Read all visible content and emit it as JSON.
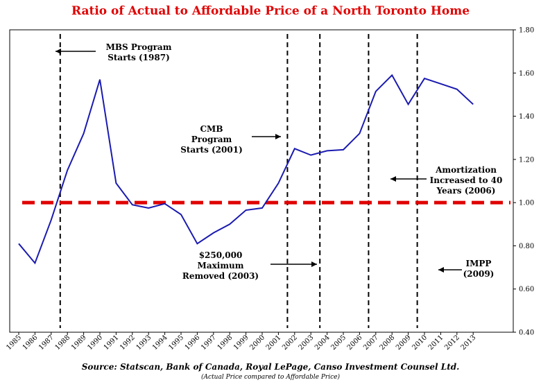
{
  "chart_data": {
    "type": "line",
    "title": "Ratio of Actual to Affordable Price of a North Toronto Home",
    "x": [
      "1985",
      "1986",
      "1987",
      "1988",
      "1989",
      "1990",
      "1991",
      "1992",
      "1993",
      "1994",
      "1995",
      "1996",
      "1997",
      "1998",
      "1999",
      "2000",
      "2001",
      "2002",
      "2003",
      "2004",
      "2005",
      "2006",
      "2007",
      "2008",
      "2009",
      "2010",
      "2011",
      "2012",
      "2013"
    ],
    "series": [
      {
        "values": [
          0.81,
          0.72,
          0.92,
          1.15,
          1.32,
          1.57,
          1.09,
          0.99,
          0.975,
          0.995,
          0.945,
          0.81,
          0.86,
          0.9,
          0.965,
          0.975,
          1.09,
          1.25,
          1.22,
          1.24,
          1.245,
          1.32,
          1.515,
          1.59,
          1.455,
          1.575,
          1.55,
          1.525,
          1.455
        ],
        "color": "#1a1ab0"
      }
    ],
    "reference_line": {
      "value": 1.0,
      "color": "#e00000",
      "style": "dashed"
    },
    "ylim": [
      0.4,
      1.8
    ],
    "yticks": [
      "0.40",
      "0.60",
      "0.80",
      "1.00",
      "1.20",
      "1.40",
      "1.60",
      "1.80"
    ],
    "y_axis_side": "right",
    "grid": false,
    "event_lines": [
      "1987",
      "2001",
      "2003",
      "2006",
      "2009"
    ],
    "annotations": [
      {
        "lines": [
          "MBS Program",
          "Starts (1987)"
        ],
        "arrow": "left"
      },
      {
        "lines": [
          "CMB",
          "Program",
          "Starts (2001)"
        ],
        "arrow": "right"
      },
      {
        "lines": [
          "$250,000",
          "Maximum",
          "Removed (2003)"
        ],
        "arrow": "right"
      },
      {
        "lines": [
          "Amortization",
          "Increased to 40",
          "Years (2006)"
        ],
        "arrow": "left"
      },
      {
        "lines": [
          "IMPP",
          "(2009)"
        ],
        "arrow": "left"
      }
    ],
    "source": "Source: Statscan,  Bank of Canada, Royal LePage, Canso Investment Counsel Ltd.",
    "note": "(Actual Price compared to Affordable Price)"
  }
}
